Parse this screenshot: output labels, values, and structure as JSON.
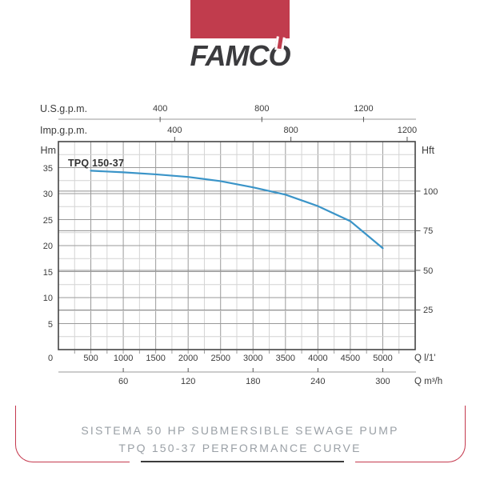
{
  "logo": {
    "brand_prefix": "FAMC",
    "brand_o": "O"
  },
  "caption": {
    "line1": "SISTEMA 50 HP SUBMERSIBLE SEWAGE PUMP",
    "line2": "TPQ 150-37 PERFORMANCE CURVE"
  },
  "colors": {
    "brand_red": "#c13c4d",
    "frame_red": "#c5394e",
    "curve_blue": "#3a94c8",
    "caption_gray": "#9aa0a6",
    "divider_dark": "#3b3b3b",
    "grid_minor": "#d4d4d4",
    "grid_major": "#9a9a9a",
    "grid_hft": "#8f8f8f",
    "plot_border": "#454545",
    "axis_line": "#9a9a9a",
    "tick_mark": "#555555"
  },
  "chart_data": {
    "type": "line",
    "title": "TPQ 150-37",
    "series": [
      {
        "name": "TPQ 150-37",
        "color": "#3a94c8",
        "points": [
          [
            500,
            34.4
          ],
          [
            1000,
            34.1
          ],
          [
            1500,
            33.7
          ],
          [
            2000,
            33.2
          ],
          [
            2500,
            32.4
          ],
          [
            3000,
            31.2
          ],
          [
            3500,
            29.8
          ],
          [
            4000,
            27.6
          ],
          [
            4500,
            24.7
          ],
          [
            5000,
            19.5
          ]
        ]
      }
    ],
    "x_axis_l": {
      "label": "Q l/1'",
      "ticks": [
        0,
        500,
        1000,
        1500,
        2000,
        2500,
        3000,
        3500,
        4000,
        4500,
        5000
      ],
      "lim": [
        0,
        5500
      ]
    },
    "x_axis_m3h": {
      "label": "Q m³/h",
      "ticks": [
        60,
        120,
        180,
        240,
        300
      ],
      "l_per_unit": 16.6667
    },
    "x_axis_usgpm": {
      "label": "U.S.g.p.m.",
      "ticks": [
        400,
        800,
        1200
      ],
      "l_per_unit": 3.92
    },
    "x_axis_impgpm": {
      "label": "Imp.g.p.m.",
      "ticks": [
        400,
        800,
        1200
      ],
      "l_per_unit": 4.48
    },
    "y_axis_hm": {
      "label": "Hm",
      "ticks": [
        5,
        10,
        15,
        20,
        25,
        30,
        35
      ],
      "lim": [
        0,
        40
      ]
    },
    "y_axis_hft": {
      "label": "Hft",
      "ticks": [
        25,
        50,
        75,
        100
      ],
      "m_per_unit": 0.3048
    },
    "grid": {
      "minor_step_l": 250,
      "major_step_l": 500,
      "minor_step_hm": 2.5,
      "major_step_hm": 5
    }
  }
}
